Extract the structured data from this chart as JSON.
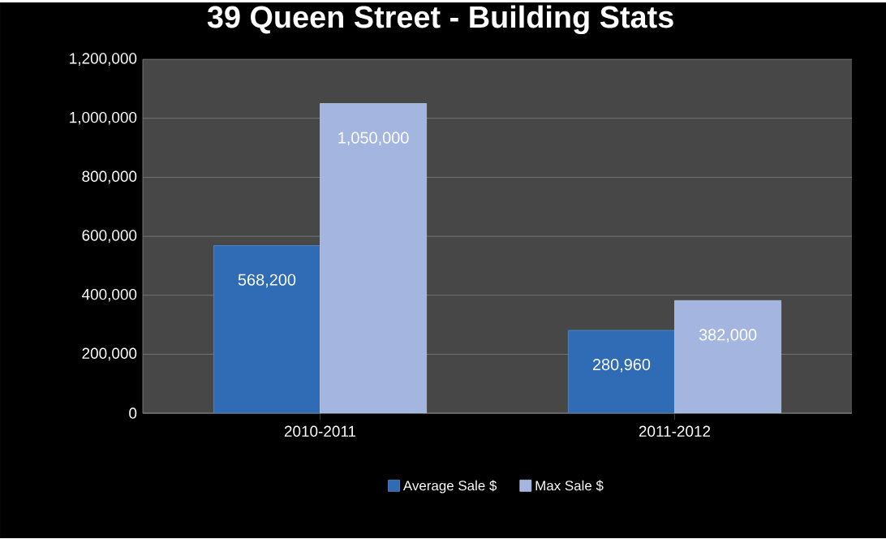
{
  "chart_data": {
    "type": "bar",
    "title": "39 Queen Street - Building Stats",
    "categories": [
      "2010-2011",
      "2011-2012"
    ],
    "series": [
      {
        "name": "Average Sale $",
        "color": "#2f6cb5",
        "values": [
          568200,
          280960
        ],
        "value_labels": [
          "568,200",
          "280,960"
        ]
      },
      {
        "name": "Max Sale $",
        "color": "#a4b6e0",
        "values": [
          1050000,
          382000
        ],
        "value_labels": [
          "1,050,000",
          "382,000"
        ]
      }
    ],
    "ylim": [
      0,
      1200000
    ],
    "yticks": [
      0,
      {
        "value": 200000,
        "label": "200,000"
      },
      {
        "value": 400000,
        "label": "400,000"
      },
      {
        "value": 600000,
        "label": "600,000"
      },
      {
        "value": 800000,
        "label": "800,000"
      },
      {
        "value": 1000000,
        "label": "1,000,000"
      },
      {
        "value": 1200000,
        "label": "1,200,000"
      }
    ],
    "grid": "y",
    "legend": "bottom"
  }
}
